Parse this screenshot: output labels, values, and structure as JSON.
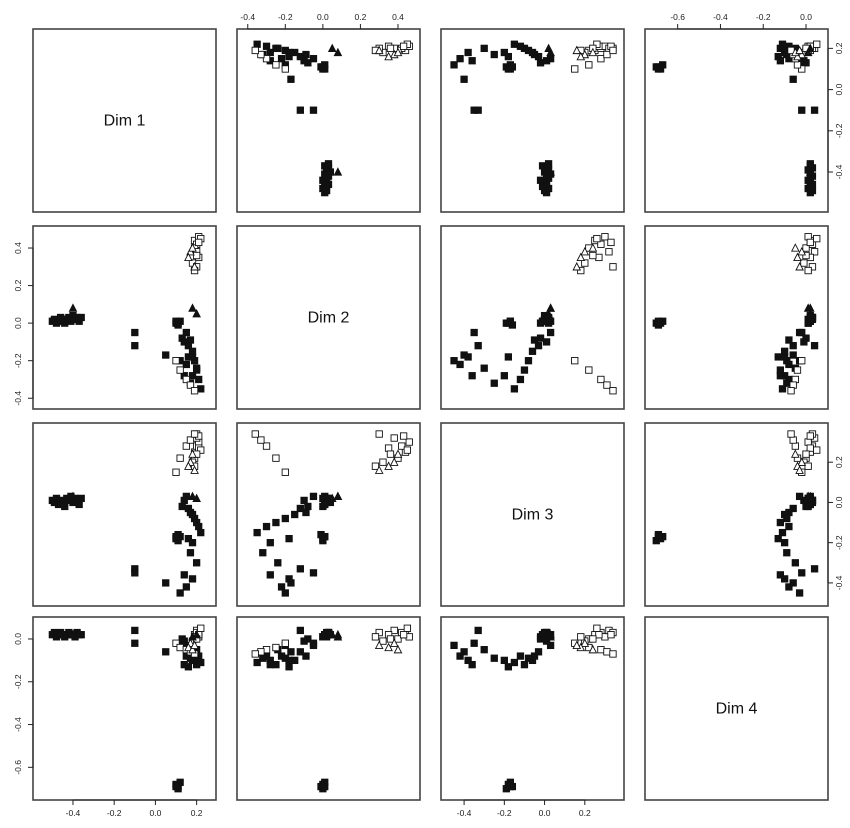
{
  "chart_data": {
    "type": "scatter",
    "layout": "scatterplot-matrix",
    "variables": [
      "Dim 1",
      "Dim 2",
      "Dim 3",
      "Dim 4"
    ],
    "ranges": {
      "Dim 1": [
        -0.56,
        0.26
      ],
      "Dim 2": [
        -0.42,
        0.48
      ],
      "Dim 3": [
        -0.48,
        0.36
      ],
      "Dim 4": [
        -0.72,
        0.07
      ]
    },
    "ticks": {
      "Dim 1": [
        -0.4,
        -0.2,
        0.0,
        0.2
      ],
      "Dim 2": [
        -0.4,
        -0.2,
        0.0,
        0.2,
        0.4
      ],
      "Dim 3": [
        -0.4,
        -0.2,
        0.0,
        0.2
      ],
      "Dim 4": [
        -0.6,
        -0.4,
        -0.2,
        0.0
      ]
    },
    "tick_labels": {
      "Dim 1": [
        "-0.4",
        "-0.2",
        "0.0",
        "0.2"
      ],
      "Dim 2": [
        "-0.4",
        "-0.2",
        "0.0",
        "0.2",
        "0.4"
      ],
      "Dim 3": [
        "-0.4",
        "-0.2",
        "0.0",
        "0.2"
      ],
      "Dim 4": [
        "-0.6",
        "-0.4",
        "-0.2",
        "0.0"
      ]
    },
    "marker_styles": [
      "filled-square",
      "open-square",
      "open-triangle",
      "filled-triangle"
    ],
    "groups": [
      {
        "marker": "filled-square",
        "points": [
          [
            -0.5,
            0.01,
            0.01,
            0.02
          ],
          [
            -0.49,
            0.02,
            0.0,
            0.03
          ],
          [
            -0.48,
            0.0,
            0.02,
            0.01
          ],
          [
            -0.47,
            0.01,
            -0.01,
            0.02
          ],
          [
            -0.46,
            0.03,
            0.01,
            0.03
          ],
          [
            -0.45,
            0.02,
            0.0,
            0.02
          ],
          [
            -0.44,
            0.0,
            -0.02,
            0.01
          ],
          [
            -0.43,
            0.02,
            0.02,
            0.02
          ],
          [
            -0.42,
            0.03,
            0.01,
            0.03
          ],
          [
            -0.41,
            0.01,
            0.03,
            0.02
          ],
          [
            -0.4,
            0.04,
            0.0,
            0.02
          ],
          [
            -0.39,
            0.02,
            0.02,
            0.01
          ],
          [
            -0.38,
            0.03,
            0.01,
            0.03
          ],
          [
            -0.37,
            0.01,
            -0.01,
            0.02
          ],
          [
            -0.36,
            0.03,
            0.02,
            0.02
          ]
        ]
      },
      {
        "marker": "filled-square",
        "points": [
          [
            -0.1,
            -0.12,
            -0.33,
            0.04
          ]
        ]
      },
      {
        "marker": "filled-square",
        "points": [
          [
            0.13,
            -0.08,
            -0.02,
            0.0
          ],
          [
            0.14,
            -0.1,
            0.01,
            -0.01
          ],
          [
            0.15,
            -0.05,
            0.03,
            -0.03
          ],
          [
            0.16,
            -0.12,
            -0.03,
            -0.06
          ],
          [
            0.17,
            -0.09,
            -0.05,
            -0.08
          ],
          [
            0.18,
            -0.15,
            -0.06,
            -0.1
          ],
          [
            0.19,
            -0.2,
            -0.08,
            -0.09
          ],
          [
            0.2,
            -0.25,
            -0.1,
            -0.12
          ],
          [
            0.21,
            -0.3,
            -0.12,
            -0.08
          ],
          [
            0.22,
            -0.35,
            -0.15,
            -0.11
          ],
          [
            0.16,
            -0.18,
            -0.18,
            -0.13
          ],
          [
            0.18,
            -0.28,
            -0.2,
            -0.1
          ]
        ]
      },
      {
        "marker": "filled-square",
        "points": [
          [
            0.1,
            0.0,
            -0.18,
            -0.68
          ],
          [
            0.11,
            -0.01,
            -0.16,
            -0.69
          ],
          [
            0.12,
            0.01,
            -0.17,
            -0.67
          ],
          [
            0.11,
            0.0,
            -0.19,
            -0.7
          ],
          [
            0.1,
            0.01,
            -0.17,
            -0.69
          ]
        ]
      },
      {
        "marker": "filled-square",
        "points": [
          [
            -0.1,
            -0.05,
            -0.35,
            -0.02
          ],
          [
            0.05,
            -0.17,
            -0.4,
            -0.06
          ],
          [
            0.12,
            -0.2,
            -0.45,
            -0.03
          ],
          [
            0.15,
            -0.22,
            -0.42,
            -0.08
          ],
          [
            0.18,
            -0.18,
            -0.38,
            -0.1
          ],
          [
            0.2,
            -0.24,
            -0.3,
            -0.05
          ],
          [
            0.14,
            -0.28,
            -0.36,
            -0.12
          ],
          [
            0.17,
            -0.32,
            -0.25,
            -0.09
          ]
        ]
      },
      {
        "marker": "open-square",
        "points": [
          [
            0.19,
            0.44,
            0.25,
            0.02
          ],
          [
            0.2,
            0.42,
            0.28,
            0.03
          ],
          [
            0.21,
            0.46,
            0.3,
            0.01
          ],
          [
            0.19,
            0.4,
            0.22,
            0.0
          ],
          [
            0.2,
            0.38,
            0.32,
            0.04
          ],
          [
            0.21,
            0.35,
            0.27,
            0.02
          ],
          [
            0.18,
            0.32,
            0.2,
            -0.01
          ],
          [
            0.2,
            0.3,
            0.34,
            0.03
          ],
          [
            0.22,
            0.45,
            0.26,
            0.05
          ],
          [
            0.19,
            0.28,
            0.18,
            0.01
          ],
          [
            0.21,
            0.43,
            0.33,
            0.02
          ],
          [
            0.2,
            0.36,
            0.24,
            0.0
          ],
          [
            0.1,
            -0.2,
            0.15,
            -0.02
          ],
          [
            0.12,
            -0.25,
            0.22,
            -0.04
          ],
          [
            0.15,
            -0.3,
            0.28,
            -0.05
          ],
          [
            0.17,
            -0.33,
            0.31,
            -0.06
          ],
          [
            0.19,
            -0.36,
            0.34,
            -0.07
          ]
        ]
      },
      {
        "marker": "open-triangle",
        "points": [
          [
            0.17,
            0.38,
            0.2,
            -0.02
          ],
          [
            0.16,
            0.35,
            0.18,
            -0.04
          ],
          [
            0.18,
            0.4,
            0.24,
            -0.05
          ],
          [
            0.19,
            0.3,
            0.16,
            -0.03
          ]
        ]
      },
      {
        "marker": "filled-triangle",
        "points": [
          [
            -0.4,
            0.08,
            0.03,
            0.02
          ],
          [
            0.18,
            0.08,
            0.03,
            0.01
          ],
          [
            0.2,
            0.05,
            0.02,
            0.02
          ]
        ]
      }
    ]
  }
}
